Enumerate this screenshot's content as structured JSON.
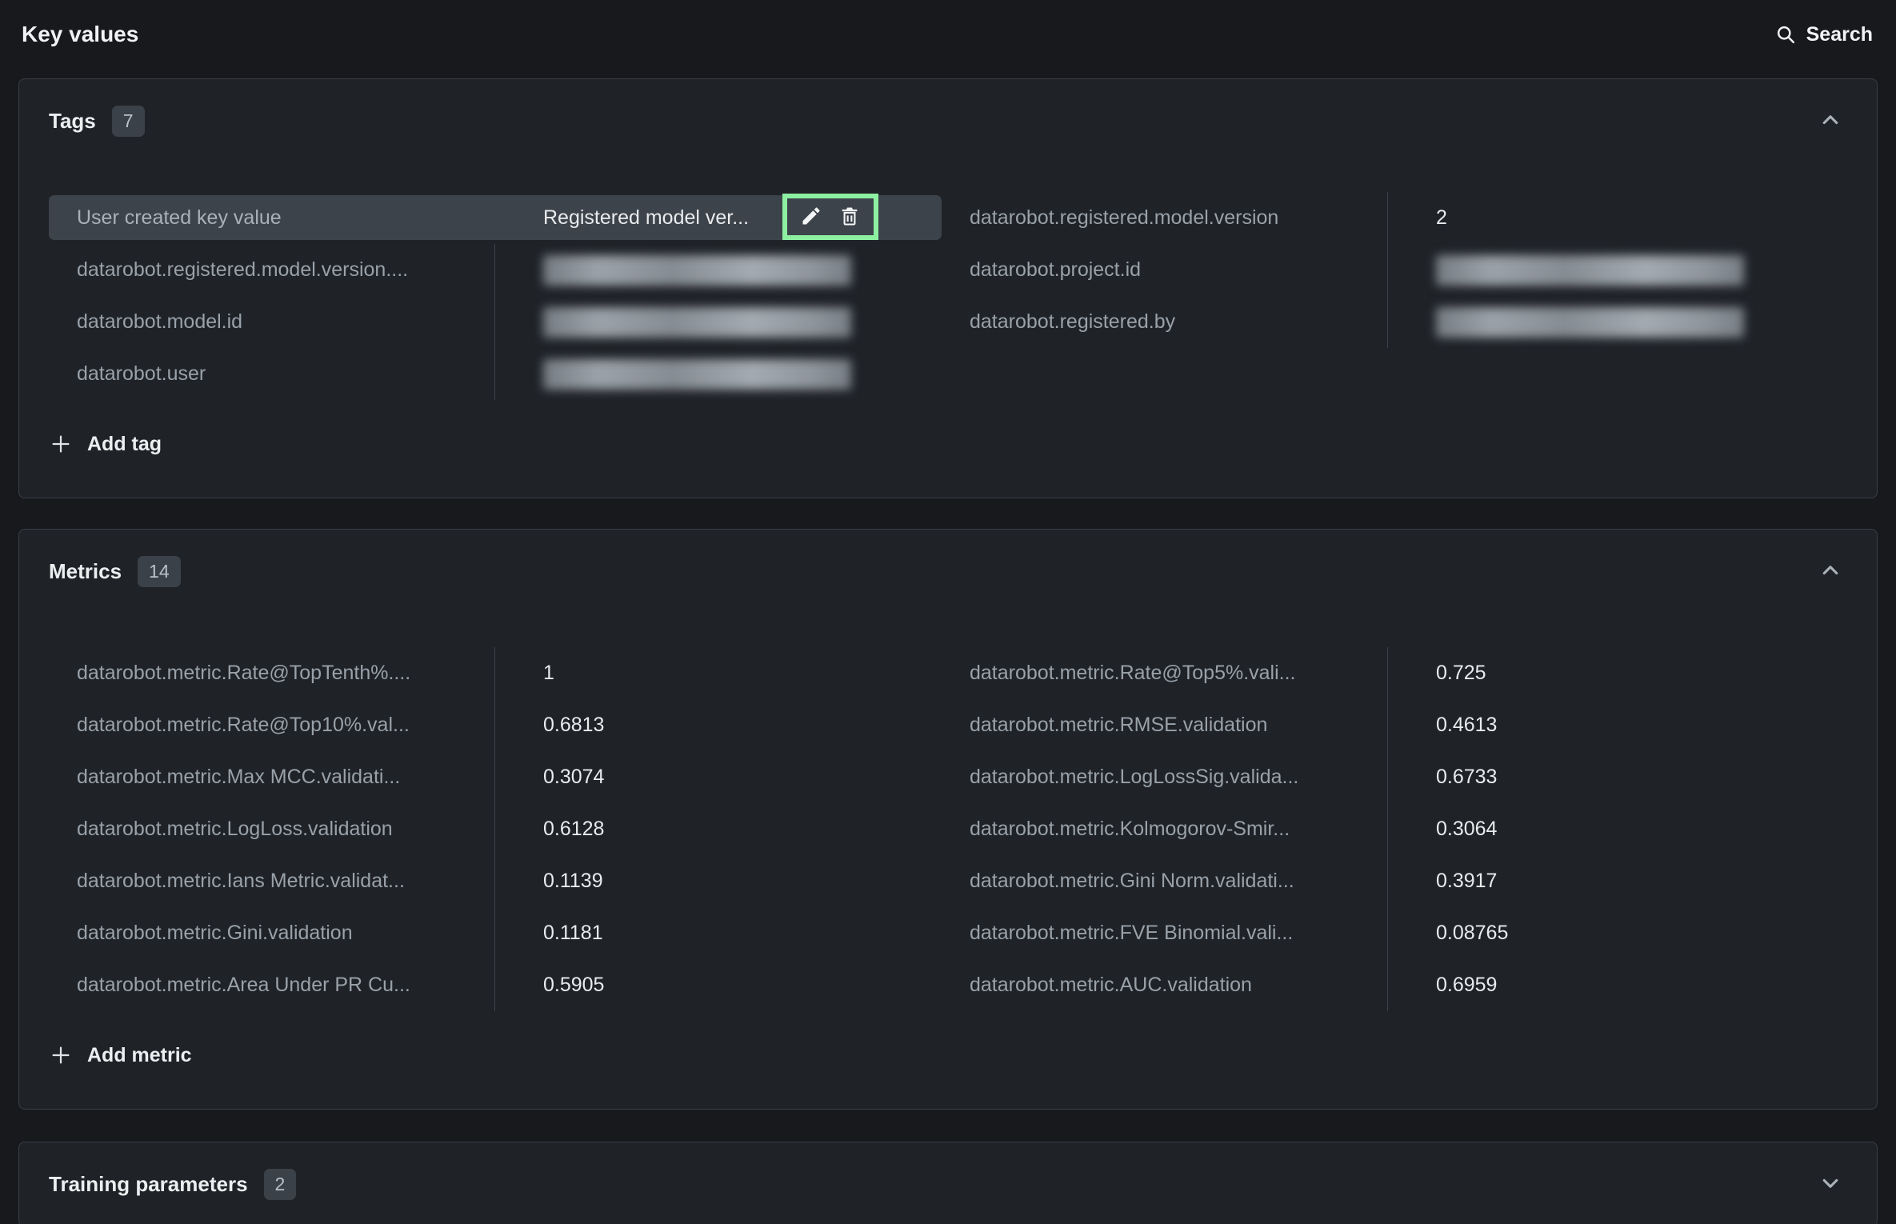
{
  "page": {
    "title": "Key values",
    "search_label": "Search"
  },
  "colors": {
    "page_background": "#17191D",
    "panel_background": "#1F2227",
    "highlight_row": "#3D434B",
    "annotation_green": "#8DF0A1",
    "muted_text": "#99A1A9",
    "value_text": "#E9EBED"
  },
  "icons": {
    "search": "magnifying-glass",
    "edit": "pencil",
    "delete": "trash",
    "add": "plus",
    "collapse": "chevron-up",
    "expand": "chevron-down"
  },
  "tags": {
    "title": "Tags",
    "count": "7",
    "add_label": "Add tag",
    "left_rows": [
      {
        "label": "User created key value",
        "value": "Registered model ver...",
        "highlighted": true,
        "actions": true
      },
      {
        "label": "datarobot.registered.model.version....",
        "value_blurred": true
      },
      {
        "label": "datarobot.model.id",
        "value_blurred": true
      },
      {
        "label": "datarobot.user",
        "value_blurred": true
      }
    ],
    "right_rows": [
      {
        "label": "datarobot.registered.model.version",
        "value": "2"
      },
      {
        "label": "datarobot.project.id",
        "value_blurred": true
      },
      {
        "label": "datarobot.registered.by",
        "value_blurred": true
      }
    ]
  },
  "metrics": {
    "title": "Metrics",
    "count": "14",
    "add_label": "Add metric",
    "left_rows": [
      {
        "label": "datarobot.metric.Rate@TopTenth%....",
        "value": "1"
      },
      {
        "label": "datarobot.metric.Rate@Top10%.val...",
        "value": "0.6813"
      },
      {
        "label": "datarobot.metric.Max MCC.validati...",
        "value": "0.3074"
      },
      {
        "label": "datarobot.metric.LogLoss.validation",
        "value": "0.6128"
      },
      {
        "label": "datarobot.metric.Ians Metric.validat...",
        "value": "0.1139"
      },
      {
        "label": "datarobot.metric.Gini.validation",
        "value": "0.1181"
      },
      {
        "label": "datarobot.metric.Area Under PR Cu...",
        "value": "0.5905"
      }
    ],
    "right_rows": [
      {
        "label": "datarobot.metric.Rate@Top5%.vali...",
        "value": "0.725"
      },
      {
        "label": "datarobot.metric.RMSE.validation",
        "value": "0.4613"
      },
      {
        "label": "datarobot.metric.LogLossSig.valida...",
        "value": "0.6733"
      },
      {
        "label": "datarobot.metric.Kolmogorov-Smir...",
        "value": "0.3064"
      },
      {
        "label": "datarobot.metric.Gini Norm.validati...",
        "value": "0.3917"
      },
      {
        "label": "datarobot.metric.FVE Binomial.vali...",
        "value": "0.08765"
      },
      {
        "label": "datarobot.metric.AUC.validation",
        "value": "0.6959"
      }
    ]
  },
  "training_parameters": {
    "title": "Training parameters",
    "count": "2"
  }
}
